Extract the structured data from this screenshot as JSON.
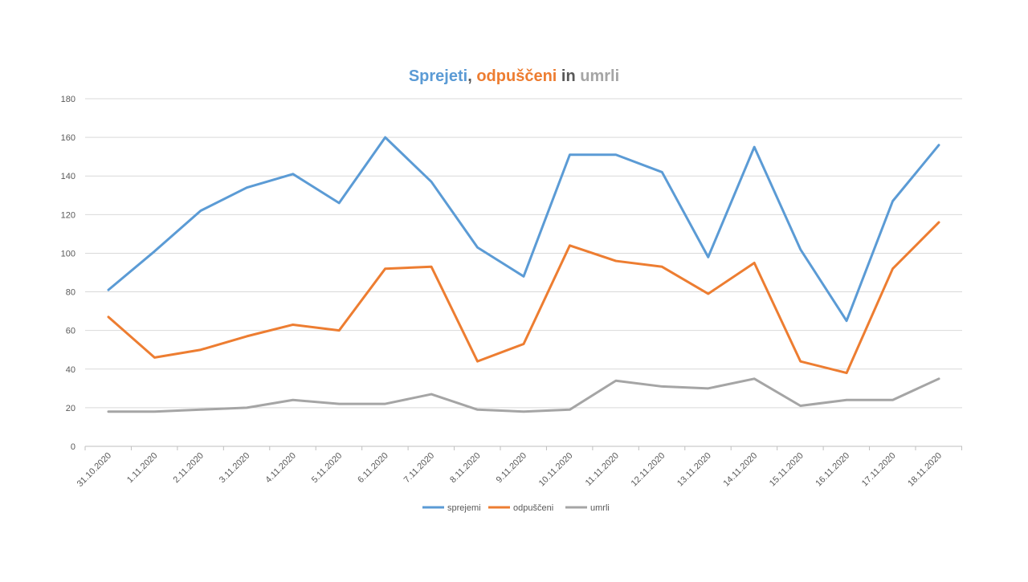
{
  "chart_data": {
    "type": "line",
    "title_parts": [
      {
        "text": "Sprejeti",
        "color": "#5B9BD5"
      },
      {
        "text": ", ",
        "color": "#595959"
      },
      {
        "text": "odpuščeni",
        "color": "#ED7D31"
      },
      {
        "text": " in ",
        "color": "#595959"
      },
      {
        "text": "umrli",
        "color": "#A5A5A5"
      }
    ],
    "xlabel": "",
    "ylabel": "",
    "ylim": [
      0,
      180
    ],
    "yticks": [
      0,
      20,
      40,
      60,
      80,
      100,
      120,
      140,
      160,
      180
    ],
    "grid": true,
    "legend_position": "bottom",
    "categories": [
      "31.10.2020",
      "1.11.2020",
      "2.11.2020",
      "3.11.2020",
      "4.11.2020",
      "5.11.2020",
      "6.11.2020",
      "7.11.2020",
      "8.11.2020",
      "9.11.2020",
      "10.11.2020",
      "11.11.2020",
      "12.11.2020",
      "13.11.2020",
      "14.11.2020",
      "15.11.2020",
      "16.11.2020",
      "17.11.2020",
      "18.11.2020"
    ],
    "series": [
      {
        "name": "sprejemi",
        "color": "#5B9BD5",
        "values": [
          81,
          101,
          122,
          134,
          141,
          126,
          160,
          137,
          103,
          88,
          151,
          151,
          142,
          98,
          155,
          102,
          65,
          127,
          156
        ]
      },
      {
        "name": "odpuščeni",
        "color": "#ED7D31",
        "values": [
          67,
          46,
          50,
          57,
          63,
          60,
          92,
          93,
          44,
          53,
          104,
          96,
          93,
          79,
          95,
          44,
          38,
          92,
          116
        ]
      },
      {
        "name": "umrli",
        "color": "#A5A5A5",
        "values": [
          18,
          18,
          19,
          20,
          24,
          22,
          22,
          27,
          19,
          18,
          19,
          34,
          31,
          30,
          35,
          21,
          24,
          24,
          35
        ]
      }
    ]
  }
}
